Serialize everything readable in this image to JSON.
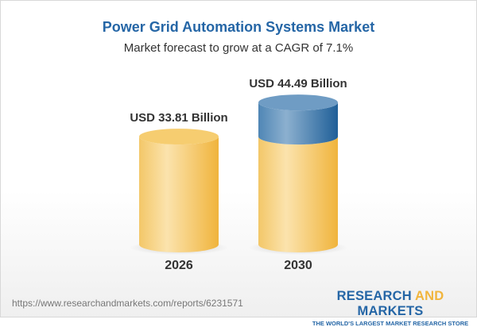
{
  "chart_data": {
    "type": "bar",
    "style": "3d-cylinder",
    "title": "Power Grid Automation Systems Market",
    "subtitle": "Market forecast to grow at a CAGR of 7.1%",
    "categories": [
      "2026",
      "2030"
    ],
    "values": [
      33.81,
      44.49
    ],
    "value_labels": [
      "USD 33.81 Billion",
      "USD 44.49 Billion"
    ],
    "unit": "USD Billion",
    "colors": {
      "base": "#f3c25a",
      "growth": "#2f6fa5"
    },
    "grid": false
  },
  "footer": {
    "url": "https://www.researchandmarkets.com/reports/6231571",
    "logo_part1": "RESEARCH ",
    "logo_part2": "AND",
    "logo_part3": " MARKETS",
    "tagline": "THE WORLD'S LARGEST MARKET RESEARCH STORE"
  }
}
